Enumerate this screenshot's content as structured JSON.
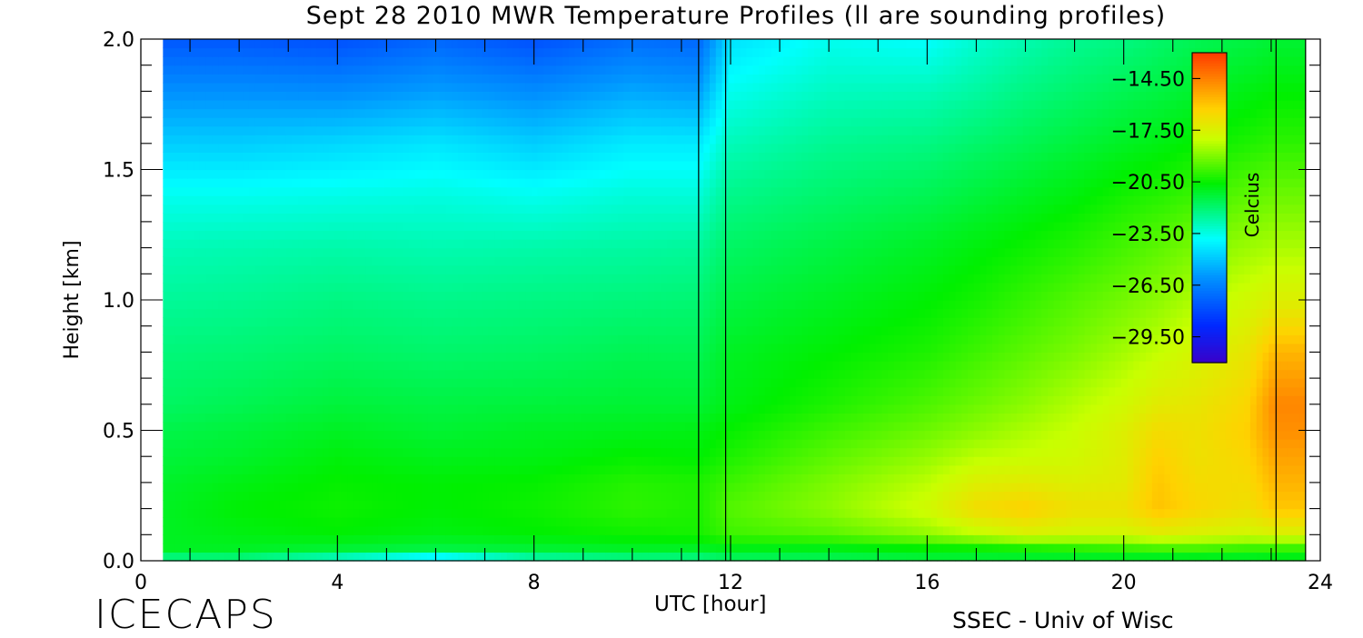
{
  "title": "Sept 28 2010 MWR Temperature Profiles (ll are sounding profiles)",
  "footer": {
    "brand": "ICECAPS",
    "credit": "SSEC - Univ of Wisc"
  },
  "colors": {
    "background": "#ffffff",
    "frame": "#000000"
  },
  "chart_data": {
    "type": "heatmap",
    "title": "Sept 28 2010 MWR Temperature Profiles (ll are sounding profiles)",
    "xlabel": "UTC [hour]",
    "ylabel": "Height [km]",
    "xlim": [
      0,
      24
    ],
    "ylim": [
      0,
      2.0
    ],
    "x_ticks": [
      0,
      4,
      8,
      12,
      16,
      20,
      24
    ],
    "y_ticks": [
      0.0,
      0.5,
      1.0,
      1.5,
      2.0
    ],
    "data_x_range": [
      0.45,
      23.7
    ],
    "sounding_profiles": [
      {
        "x_range": [
          11.35,
          11.9
        ]
      },
      {
        "x_range": [
          23.1,
          23.7
        ]
      }
    ],
    "colorbar": {
      "label": "Celcius",
      "range": [
        -31.0,
        -13.0
      ],
      "ticks": [
        -14.5,
        -17.5,
        -20.5,
        -23.5,
        -26.5,
        -29.5
      ],
      "tick_labels": [
        "−14.50",
        "−17.50",
        "−20.50",
        "−23.50",
        "−26.50",
        "−29.50"
      ],
      "position": "top-right inside plot"
    },
    "heights": [
      0.0,
      0.05,
      0.1,
      0.2,
      0.3,
      0.4,
      0.5,
      0.6,
      0.8,
      1.0,
      1.2,
      1.4,
      1.6,
      1.8,
      2.0
    ],
    "times": [
      0.45,
      2,
      4,
      6,
      8,
      10,
      11.35,
      12,
      14,
      16,
      17,
      18,
      19,
      20,
      20.7,
      21.5,
      22.5,
      23.1
    ],
    "temperature": [
      [
        -22.6,
        -22.4,
        -23.5,
        -25.0,
        -23.0,
        -22.5,
        -22.5,
        -22.0,
        -21.8,
        -21.5,
        -21.5,
        -21.5,
        -21.5,
        -21.5,
        -21.6,
        -21.5,
        -21.5,
        -21.3
      ],
      [
        -21.0,
        -21.0,
        -21.2,
        -21.4,
        -21.2,
        -21.0,
        -21.0,
        -20.8,
        -20.8,
        -20.5,
        -20.4,
        -20.2,
        -20.0,
        -19.8,
        -19.6,
        -19.6,
        -19.8,
        -19.8
      ],
      [
        -21.0,
        -20.8,
        -20.6,
        -20.8,
        -20.6,
        -20.4,
        -20.3,
        -19.8,
        -19.5,
        -18.8,
        -18.2,
        -17.6,
        -17.8,
        -17.8,
        -17.4,
        -17.6,
        -17.8,
        -17.6
      ],
      [
        -21.0,
        -20.6,
        -20.4,
        -20.6,
        -20.4,
        -20.0,
        -20.2,
        -19.5,
        -18.8,
        -17.8,
        -16.6,
        -16.2,
        -16.8,
        -16.8,
        -15.9,
        -16.4,
        -16.8,
        -16.0
      ],
      [
        -21.1,
        -20.8,
        -20.5,
        -20.6,
        -20.5,
        -20.1,
        -20.2,
        -19.8,
        -19.0,
        -18.2,
        -17.4,
        -17.2,
        -17.4,
        -17.2,
        -16.0,
        -16.6,
        -16.6,
        -15.6
      ],
      [
        -21.3,
        -21.1,
        -20.7,
        -20.9,
        -20.8,
        -20.5,
        -20.6,
        -20.2,
        -19.4,
        -18.7,
        -18.2,
        -18.0,
        -17.8,
        -17.3,
        -16.2,
        -16.8,
        -16.4,
        -15.2
      ],
      [
        -21.5,
        -21.3,
        -21.0,
        -21.2,
        -21.0,
        -20.9,
        -20.8,
        -20.5,
        -19.8,
        -19.2,
        -18.8,
        -18.4,
        -18.0,
        -17.4,
        -16.6,
        -16.8,
        -16.2,
        -14.8
      ],
      [
        -21.8,
        -21.6,
        -21.3,
        -21.4,
        -21.3,
        -21.2,
        -21.2,
        -20.8,
        -20.2,
        -19.6,
        -19.2,
        -18.8,
        -18.3,
        -17.8,
        -17.2,
        -17.0,
        -16.4,
        -14.6
      ],
      [
        -22.1,
        -22.0,
        -21.8,
        -21.9,
        -21.8,
        -21.6,
        -21.6,
        -21.0,
        -20.6,
        -20.2,
        -19.8,
        -19.4,
        -19.0,
        -18.5,
        -18.1,
        -17.6,
        -17.0,
        -15.6
      ],
      [
        -22.5,
        -22.4,
        -22.2,
        -22.3,
        -22.2,
        -22.1,
        -22.0,
        -21.4,
        -21.0,
        -20.6,
        -20.3,
        -19.9,
        -19.5,
        -19.1,
        -18.8,
        -18.3,
        -17.8,
        -17.4
      ],
      [
        -22.9,
        -22.8,
        -22.7,
        -22.8,
        -22.7,
        -22.6,
        -22.5,
        -21.8,
        -21.4,
        -21.0,
        -20.7,
        -20.4,
        -20.1,
        -19.7,
        -19.4,
        -19.0,
        -18.6,
        -18.4
      ],
      [
        -23.6,
        -23.6,
        -23.5,
        -23.4,
        -23.6,
        -23.3,
        -23.3,
        -22.3,
        -21.9,
        -21.6,
        -21.3,
        -21.0,
        -20.7,
        -20.3,
        -20.1,
        -19.8,
        -19.4,
        -19.2
      ],
      [
        -24.8,
        -24.8,
        -24.6,
        -24.3,
        -24.8,
        -24.2,
        -24.2,
        -22.9,
        -22.4,
        -22.2,
        -21.9,
        -21.6,
        -21.3,
        -21.0,
        -20.8,
        -20.5,
        -20.2,
        -20.0
      ],
      [
        -26.1,
        -26.1,
        -26.2,
        -25.8,
        -26.2,
        -25.6,
        -25.8,
        -23.6,
        -23.0,
        -22.9,
        -22.6,
        -22.2,
        -21.9,
        -21.6,
        -21.4,
        -21.1,
        -20.8,
        -20.6
      ],
      [
        -27.6,
        -27.6,
        -27.8,
        -27.2,
        -27.8,
        -27.0,
        -27.2,
        -24.4,
        -23.6,
        -23.8,
        -23.2,
        -22.8,
        -22.4,
        -22.2,
        -21.9,
        -21.6,
        -21.4,
        -21.2
      ]
    ]
  }
}
